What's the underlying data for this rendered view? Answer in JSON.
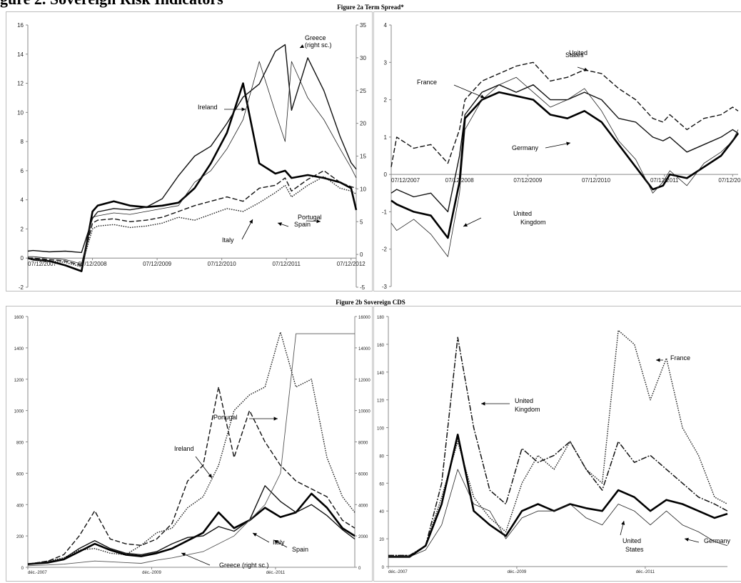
{
  "page": {
    "heading": "gure 2. Sovereign Risk Indicators",
    "figure_2a_title": "Figure 2a Term Spread*",
    "figure_2b_title": "Figure 2b Sovereign CDS"
  },
  "chart_data": [
    {
      "id": "term-spread-periphery",
      "type": "line",
      "title": "",
      "xlabel": "",
      "ylabel": "",
      "x_ticks": [
        "07/12/2007",
        "07/12/2008",
        "07/12/2009",
        "07/12/2010",
        "07/12/2011",
        "07/12/2012"
      ],
      "ylim": [
        -2,
        16
      ],
      "y_ticks": [
        -2,
        0,
        2,
        4,
        6,
        8,
        10,
        12,
        14,
        16
      ],
      "y2lim": [
        -5,
        35
      ],
      "y2_ticks": [
        -5,
        0,
        5,
        10,
        15,
        20,
        25,
        30,
        35
      ],
      "x_positions": [
        2007.92,
        2008.0,
        2008.25,
        2008.5,
        2008.75,
        2008.92,
        2009.0,
        2009.25,
        2009.5,
        2009.75,
        2010.0,
        2010.25,
        2010.5,
        2010.75,
        2011.0,
        2011.25,
        2011.5,
        2011.75,
        2011.9,
        2012.0,
        2012.25,
        2012.5,
        2012.75,
        2012.92,
        2013.0
      ],
      "series": [
        {
          "name": "Ireland",
          "axis": "left",
          "style": "thick",
          "values": [
            0.0,
            -0.1,
            -0.2,
            -0.5,
            -0.9,
            3.2,
            3.6,
            3.9,
            3.6,
            3.5,
            3.6,
            3.8,
            4.8,
            6.5,
            8.6,
            12.0,
            6.5,
            5.8,
            6.0,
            5.5,
            5.7,
            5.5,
            5.2,
            4.8,
            3.3
          ]
        },
        {
          "name": "Greece (right sc.)",
          "axis": "right",
          "style": "medium",
          "values": [
            0.5,
            0.6,
            0.4,
            0.5,
            0.3,
            5.5,
            6.5,
            7.0,
            6.8,
            7.2,
            8.5,
            12.0,
            15.0,
            16.5,
            20.0,
            24.0,
            26.0,
            31.0,
            32.0,
            22.0,
            30.0,
            25.0,
            18.0,
            14.0,
            13.0
          ]
        },
        {
          "name": "Portugal",
          "axis": "left",
          "style": "thin",
          "values": [
            0.1,
            0.1,
            0.0,
            -0.1,
            -0.4,
            2.8,
            2.9,
            3.1,
            3.0,
            3.2,
            3.4,
            3.6,
            5.2,
            6.0,
            7.5,
            9.5,
            13.5,
            10.0,
            8.0,
            13.5,
            11.0,
            9.5,
            7.5,
            6.2,
            5.5
          ]
        },
        {
          "name": "Spain",
          "axis": "left",
          "style": "dashed",
          "values": [
            0.0,
            0.0,
            -0.1,
            -0.2,
            -0.5,
            2.4,
            2.6,
            2.7,
            2.5,
            2.6,
            2.8,
            3.2,
            3.6,
            3.9,
            4.2,
            3.9,
            4.8,
            5.0,
            5.5,
            4.6,
            5.4,
            6.0,
            5.2,
            4.9,
            4.8
          ]
        },
        {
          "name": "Italy",
          "axis": "left",
          "style": "dotted",
          "values": [
            0.0,
            -0.1,
            -0.2,
            -0.3,
            -0.6,
            2.0,
            2.2,
            2.3,
            2.1,
            2.2,
            2.4,
            2.8,
            2.6,
            3.0,
            3.4,
            3.2,
            3.8,
            4.5,
            5.0,
            4.2,
            5.0,
            5.6,
            4.8,
            4.6,
            4.4
          ]
        }
      ],
      "annotations": [
        "Ireland",
        "Greece",
        "(right sc.)",
        "Portugal",
        "Italy",
        "Spain"
      ]
    },
    {
      "id": "term-spread-core",
      "type": "line",
      "title": "",
      "xlabel": "",
      "ylabel": "",
      "x_ticks": [
        "07/12/2007",
        "07/12/2008",
        "07/12/2009",
        "07/12/2010",
        "07/12/2011",
        "07/12/2012"
      ],
      "ylim": [
        -3,
        4
      ],
      "y_ticks": [
        -3,
        -2,
        -1,
        0,
        1,
        2,
        3,
        4
      ],
      "x_positions": [
        2007.92,
        2008.0,
        2008.25,
        2008.5,
        2008.75,
        2008.92,
        2009.0,
        2009.25,
        2009.5,
        2009.75,
        2010.0,
        2010.25,
        2010.5,
        2010.75,
        2011.0,
        2011.25,
        2011.5,
        2011.75,
        2011.9,
        2012.0,
        2012.25,
        2012.5,
        2012.75,
        2012.92,
        2013.0
      ],
      "series": [
        {
          "name": "United States",
          "style": "dashed",
          "values": [
            0.2,
            1.0,
            0.7,
            0.8,
            0.3,
            1.2,
            2.0,
            2.5,
            2.7,
            2.9,
            3.0,
            2.5,
            2.6,
            2.8,
            2.7,
            2.3,
            2.0,
            1.5,
            1.4,
            1.6,
            1.2,
            1.5,
            1.6,
            1.8,
            1.7
          ]
        },
        {
          "name": "France",
          "style": "medium",
          "values": [
            -0.5,
            -0.4,
            -0.6,
            -0.5,
            -1.0,
            0.5,
            1.6,
            2.2,
            2.4,
            2.2,
            2.4,
            2.0,
            2.0,
            2.2,
            2.0,
            1.5,
            1.4,
            1.0,
            0.9,
            1.0,
            0.6,
            0.8,
            1.0,
            1.2,
            1.1
          ]
        },
        {
          "name": "Germany",
          "style": "thick",
          "values": [
            -0.7,
            -0.8,
            -1.0,
            -1.1,
            -1.7,
            -0.2,
            1.5,
            2.0,
            2.2,
            2.1,
            2.0,
            1.6,
            1.5,
            1.7,
            1.4,
            0.8,
            0.2,
            -0.4,
            -0.3,
            0.0,
            -0.1,
            0.2,
            0.5,
            0.9,
            1.1
          ]
        },
        {
          "name": "United Kingdom",
          "style": "thin",
          "values": [
            -1.3,
            -1.5,
            -1.2,
            -1.6,
            -2.2,
            -0.5,
            1.2,
            2.0,
            2.4,
            2.6,
            2.2,
            1.8,
            2.0,
            2.3,
            1.7,
            0.9,
            0.4,
            -0.5,
            -0.2,
            0.1,
            -0.3,
            0.3,
            0.6,
            0.9,
            1.2
          ]
        }
      ],
      "annotations": [
        "United",
        "States",
        "France",
        "Germany",
        "United",
        "Kingdom"
      ]
    },
    {
      "id": "cds-periphery",
      "type": "line",
      "title": "",
      "xlabel": "",
      "ylabel": "",
      "x_ticks": [
        "déc.-2007",
        "déc.-2009",
        "déc.-2011"
      ],
      "ylim": [
        0,
        1600
      ],
      "y_ticks": [
        0,
        200,
        400,
        600,
        800,
        1000,
        1200,
        1400,
        1600
      ],
      "y2lim": [
        0,
        16000
      ],
      "y2_ticks": [
        0,
        2000,
        4000,
        6000,
        8000,
        10000,
        12000,
        14000,
        16000
      ],
      "x_positions": [
        2007.92,
        2008.25,
        2008.5,
        2008.75,
        2009.0,
        2009.25,
        2009.5,
        2009.75,
        2010.0,
        2010.25,
        2010.5,
        2010.75,
        2011.0,
        2011.25,
        2011.5,
        2011.75,
        2012.0,
        2012.25,
        2012.5,
        2012.75,
        2013.0,
        2013.2
      ],
      "series": [
        {
          "name": "Ireland",
          "axis": "left",
          "style": "dashed",
          "values": [
            20,
            40,
            80,
            200,
            360,
            180,
            150,
            140,
            180,
            280,
            550,
            650,
            1150,
            700,
            1000,
            800,
            650,
            550,
            500,
            450,
            300,
            250
          ]
        },
        {
          "name": "Portugal",
          "axis": "left",
          "style": "dotted",
          "values": [
            20,
            40,
            60,
            110,
            120,
            90,
            80,
            140,
            220,
            250,
            380,
            450,
            650,
            1000,
            1100,
            1150,
            1500,
            1150,
            1200,
            700,
            450,
            350
          ]
        },
        {
          "name": "Spain",
          "axis": "left",
          "style": "thick",
          "values": [
            20,
            30,
            50,
            100,
            150,
            110,
            80,
            70,
            90,
            120,
            170,
            220,
            350,
            250,
            300,
            380,
            320,
            350,
            470,
            380,
            250,
            200
          ]
        },
        {
          "name": "Italy",
          "axis": "left",
          "style": "medium",
          "values": [
            20,
            35,
            55,
            120,
            170,
            120,
            90,
            80,
            100,
            150,
            190,
            200,
            260,
            230,
            300,
            520,
            420,
            350,
            400,
            330,
            240,
            180
          ]
        },
        {
          "name": "Greece (right sc.)",
          "axis": "right",
          "style": "thin-gray",
          "values": [
            100,
            150,
            200,
            300,
            400,
            350,
            300,
            250,
            450,
            600,
            800,
            1000,
            1500,
            2000,
            3000,
            4000,
            6000,
            14900,
            14900,
            14900,
            14900,
            14900
          ]
        }
      ],
      "annotations": [
        "Portugal",
        "Ireland",
        "Italy",
        "Spain",
        "Greece (right sc.)"
      ]
    },
    {
      "id": "cds-core",
      "type": "line",
      "title": "",
      "xlabel": "",
      "ylabel": "",
      "x_ticks": [
        "déc.-2007",
        "déc.-2009",
        "déc.-2011"
      ],
      "ylim": [
        0,
        180
      ],
      "y_ticks": [
        0,
        20,
        40,
        60,
        80,
        100,
        120,
        140,
        160,
        180
      ],
      "x_positions": [
        2007.92,
        2008.25,
        2008.5,
        2008.75,
        2009.0,
        2009.25,
        2009.5,
        2009.75,
        2010.0,
        2010.25,
        2010.5,
        2010.75,
        2011.0,
        2011.25,
        2011.5,
        2011.75,
        2012.0,
        2012.25,
        2012.5,
        2012.75,
        2013.0,
        2013.2
      ],
      "series": [
        {
          "name": "France",
          "style": "dotted",
          "values": [
            8,
            8,
            15,
            50,
            90,
            50,
            35,
            25,
            60,
            80,
            70,
            90,
            70,
            60,
            170,
            160,
            120,
            150,
            100,
            80,
            50,
            45
          ]
        },
        {
          "name": "United Kingdom",
          "style": "dashdot",
          "values": [
            8,
            8,
            15,
            60,
            165,
            100,
            55,
            45,
            85,
            75,
            80,
            90,
            70,
            55,
            90,
            75,
            80,
            70,
            60,
            50,
            45,
            40
          ]
        },
        {
          "name": "Germany",
          "style": "thick",
          "values": [
            7,
            7,
            15,
            45,
            95,
            40,
            30,
            22,
            40,
            45,
            40,
            45,
            42,
            40,
            55,
            50,
            40,
            48,
            45,
            40,
            35,
            38
          ]
        },
        {
          "name": "United States",
          "style": "thin",
          "values": [
            7,
            7,
            12,
            30,
            70,
            45,
            40,
            20,
            35,
            40,
            40,
            45,
            35,
            30,
            45,
            40,
            30,
            40,
            30,
            25,
            18,
            15
          ]
        }
      ],
      "annotations": [
        "France",
        "United",
        "Kingdom",
        "United",
        "States",
        "Germany"
      ]
    }
  ]
}
